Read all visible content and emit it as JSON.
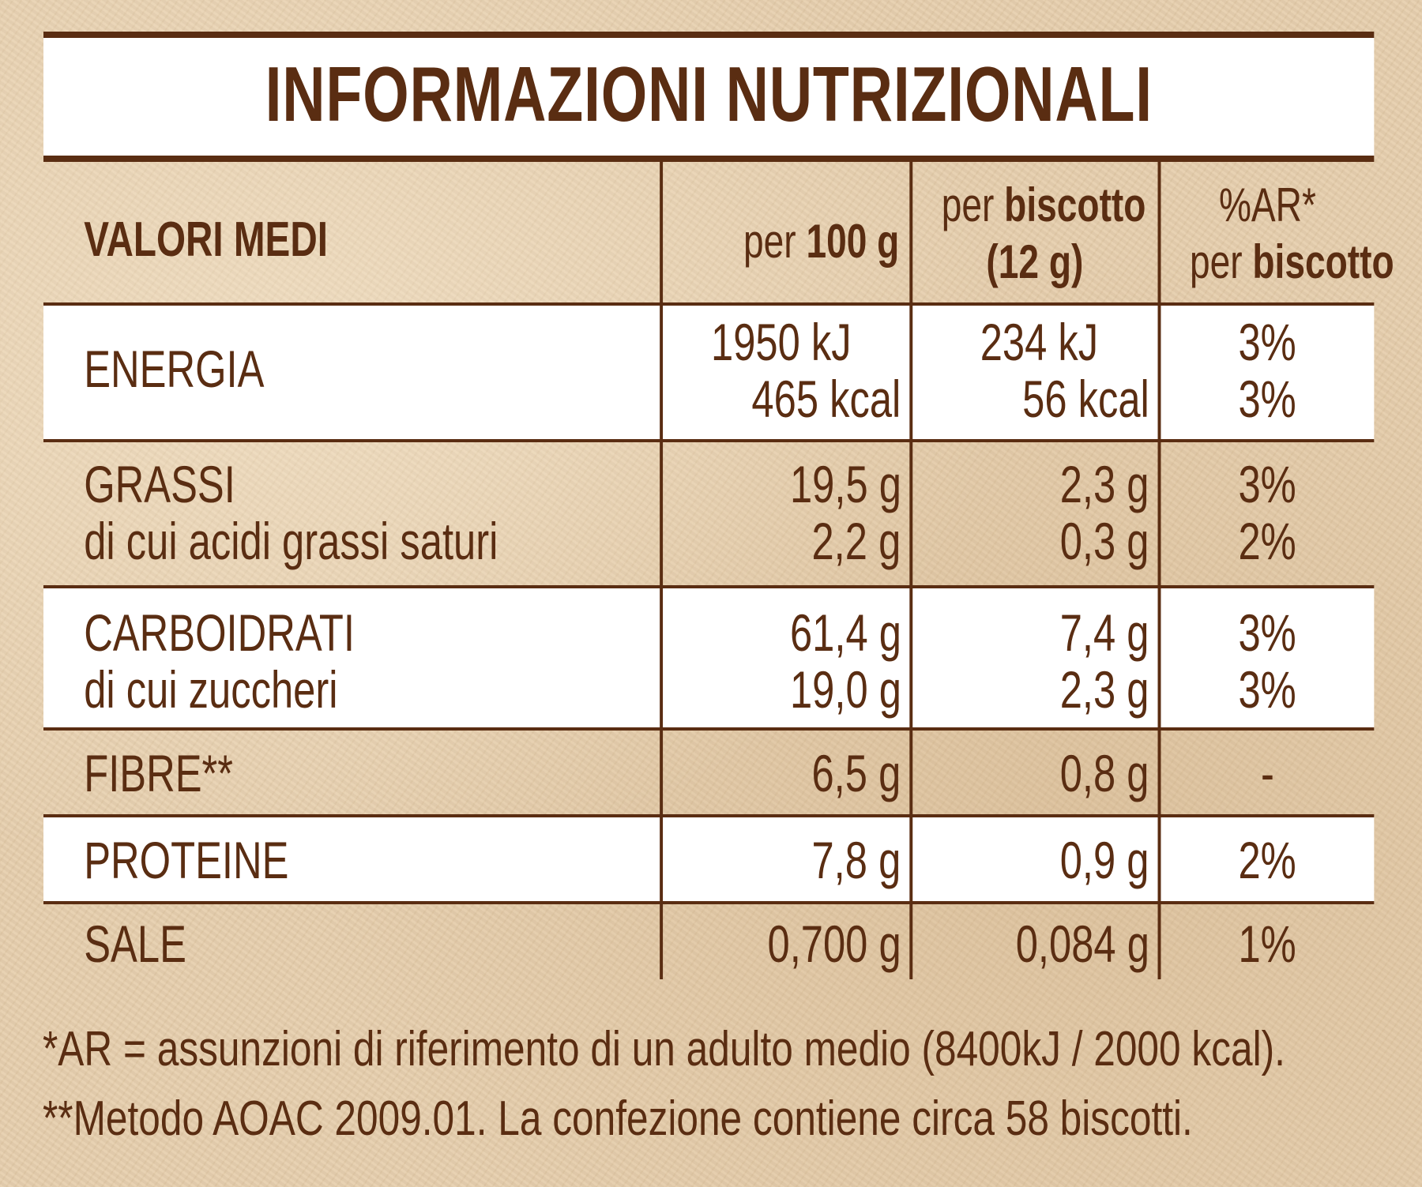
{
  "title": "INFORMAZIONI NUTRIZIONALI",
  "header": {
    "label": "VALORI MEDI",
    "col1_prefix": "per",
    "col1_bold": "100 g",
    "col2_prefix": "per",
    "col2_bold": "biscotto",
    "col2_line2": "(12 g)",
    "col3_line1": "%AR*",
    "col3_prefix": "per",
    "col3_bold": "biscotto"
  },
  "rows": [
    {
      "label1": "ENERGIA",
      "v100_1": "1950 kJ",
      "v100_2": "465 kcal",
      "vb_1": "234 kJ",
      "vb_2": "56 kcal",
      "ar_1": "3%",
      "ar_2": "3%"
    },
    {
      "label1": "GRASSI",
      "label2": "di cui acidi grassi saturi",
      "v100_1": "19,5 g",
      "v100_2": "2,2 g",
      "vb_1": "2,3 g",
      "vb_2": "0,3 g",
      "ar_1": "3%",
      "ar_2": "2%"
    },
    {
      "label1": "CARBOIDRATI",
      "label2": "di cui zuccheri",
      "v100_1": "61,4 g",
      "v100_2": "19,0 g",
      "vb_1": "7,4 g",
      "vb_2": "2,3 g",
      "ar_1": "3%",
      "ar_2": "3%"
    },
    {
      "label1": "FIBRE**",
      "v100_1": "6,5 g",
      "vb_1": "0,8 g",
      "ar_1": "-"
    },
    {
      "label1": "PROTEINE",
      "v100_1": "7,8 g",
      "vb_1": "0,9 g",
      "ar_1": "2%"
    },
    {
      "label1": "SALE",
      "v100_1": "0,700 g",
      "vb_1": "0,084 g",
      "ar_1": "1%"
    }
  ],
  "footnotes": [
    "*AR = assunzioni di riferimento di un adulto medio (8400kJ / 2000 kcal).",
    "**Metodo AOAC 2009.01. La confezione contiene circa 58 biscotti."
  ],
  "colors": {
    "text": "#5a2d12",
    "background": "#e6ceac",
    "band": "#ffffff"
  }
}
